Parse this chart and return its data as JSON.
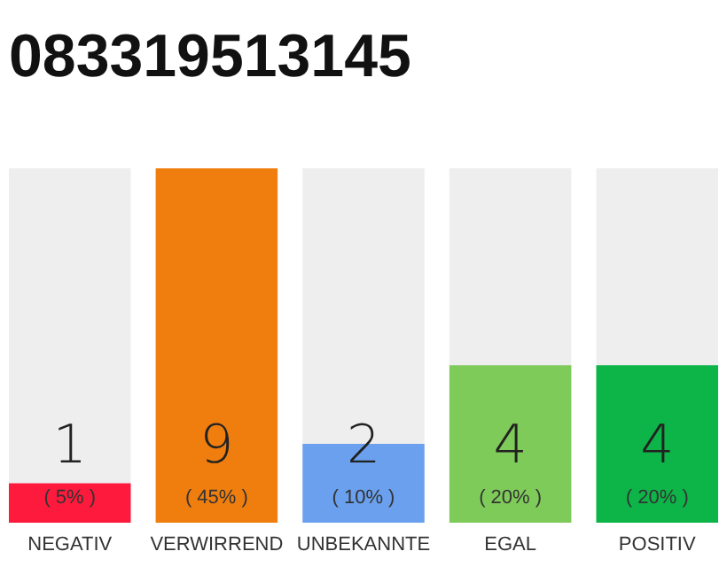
{
  "chart_data": {
    "type": "bar",
    "title": "083319513145",
    "categories": [
      "NEGATIV",
      "VERWIRREND",
      "UNBEKANNTE",
      "EGAL",
      "POSITIV"
    ],
    "values": [
      1,
      9,
      2,
      4,
      4
    ],
    "colors": [
      "#fd1a3c",
      "#f07e0e",
      "#6aa0ee",
      "#7fcb5a",
      "#0db548"
    ],
    "ylim": [
      0,
      9
    ],
    "data_labels": true,
    "tick_labels": "x",
    "grid": false,
    "annotations": [
      "( 5% )",
      "( 45% )",
      "( 10% )",
      "( 20% )",
      "( 20% )"
    ]
  }
}
